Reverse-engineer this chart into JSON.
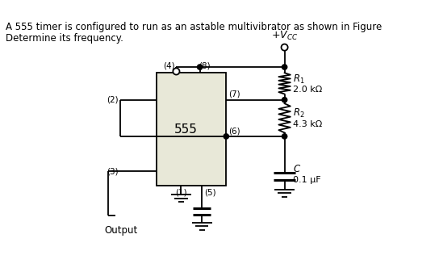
{
  "title_line1": "A 555 timer is configured to run as an astable multivibrator as shown in Figure",
  "title_line2": "Determine its frequency.",
  "bg_color": "#ffffff",
  "box_color": "#e8e8d8",
  "r1_val": "2.0 kΩ",
  "r2_val": "4.3 kΩ",
  "c_val": "0.1 μF",
  "output_label": "Output"
}
